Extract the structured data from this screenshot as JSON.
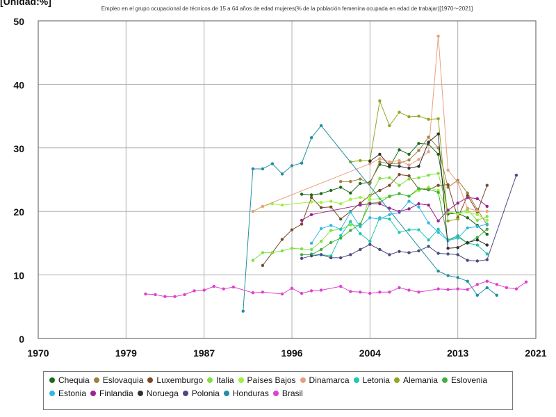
{
  "unit_label": "[Unidad:%]",
  "chart_data": {
    "type": "line",
    "title": "Empleo en el grupo ocupacional de técnicos de 15 a 64 años de edad mujeres(% de la población femenina ocupada en edad de trabajar)[1970〜2021]",
    "xlabel": "",
    "ylabel": "",
    "xlim": [
      1970,
      2021
    ],
    "ylim": [
      0,
      50
    ],
    "x_ticks": [
      "1970",
      "1979",
      "1987",
      "1996",
      "2004",
      "2013",
      "2021"
    ],
    "y_ticks": [
      "0",
      "10",
      "20",
      "30",
      "40",
      "50"
    ],
    "grid": true,
    "legend_position": "bottom",
    "series": [
      {
        "name": "Chequia",
        "color": "#1a6b1a",
        "points": [
          [
            1997,
            22.7
          ],
          [
            1998,
            22.6
          ],
          [
            1999,
            22.8
          ],
          [
            2000,
            23.3
          ],
          [
            2001,
            23.8
          ],
          [
            2002,
            22.9
          ],
          [
            2003,
            24.4
          ],
          [
            2004,
            24.6
          ],
          [
            2005,
            27.4
          ],
          [
            2006,
            27.0
          ],
          [
            2007,
            29.7
          ],
          [
            2008,
            29.0
          ],
          [
            2009,
            30.7
          ],
          [
            2010,
            30.6
          ],
          [
            2011,
            29.0
          ],
          [
            2012,
            19.6
          ],
          [
            2013,
            19.7
          ],
          [
            2014,
            19.0
          ],
          [
            2015,
            17.8
          ],
          [
            2016,
            16.4
          ]
        ]
      },
      {
        "name": "Eslovaquia",
        "color": "#a08040",
        "points": [
          [
            2001,
            24.7
          ],
          [
            2002,
            24.7
          ],
          [
            2003,
            25.1
          ],
          [
            2004,
            24.4
          ],
          [
            2005,
            27.8
          ],
          [
            2006,
            27.5
          ],
          [
            2007,
            27.6
          ],
          [
            2008,
            28.1
          ],
          [
            2009,
            29.6
          ],
          [
            2010,
            31.7
          ],
          [
            2011,
            30.0
          ],
          [
            2012,
            23.8
          ],
          [
            2013,
            24.9
          ],
          [
            2014,
            22.9
          ],
          [
            2015,
            20.3
          ],
          [
            2016,
            17.9
          ]
        ]
      },
      {
        "name": "Luxemburgo",
        "color": "#7a4a2a",
        "points": [
          [
            1993,
            11.5
          ],
          [
            1994,
            13.5
          ],
          [
            1995,
            15.6
          ],
          [
            1996,
            17.1
          ],
          [
            1997,
            18.0
          ],
          [
            1998,
            22.2
          ],
          [
            1999,
            20.6
          ],
          [
            2000,
            20.7
          ],
          [
            2001,
            18.8
          ],
          [
            2002,
            20.0
          ],
          [
            2003,
            21.3
          ],
          [
            2004,
            22.5
          ],
          [
            2005,
            23.3
          ],
          [
            2006,
            24.1
          ],
          [
            2007,
            25.8
          ],
          [
            2008,
            25.6
          ],
          [
            2009,
            23.5
          ],
          [
            2010,
            23.4
          ],
          [
            2011,
            24.1
          ],
          [
            2012,
            24.2
          ],
          [
            2013,
            19.0
          ],
          [
            2014,
            22.5
          ],
          [
            2015,
            19.9
          ],
          [
            2016,
            24.1
          ]
        ]
      },
      {
        "name": "Italia",
        "color": "#80e040",
        "points": [
          [
            1992,
            12.3
          ],
          [
            1993,
            13.5
          ],
          [
            1994,
            13.5
          ],
          [
            1995,
            13.8
          ],
          [
            1996,
            14.2
          ],
          [
            1997,
            14.1
          ],
          [
            1998,
            14.0
          ],
          [
            1999,
            15.3
          ],
          [
            2000,
            17.0
          ],
          [
            2001,
            17.2
          ],
          [
            2002,
            17.9
          ],
          [
            2003,
            17.7
          ],
          [
            2004,
            22.4
          ],
          [
            2005,
            25.2
          ],
          [
            2006,
            25.3
          ],
          [
            2007,
            24.1
          ],
          [
            2008,
            25.1
          ],
          [
            2009,
            25.3
          ],
          [
            2010,
            25.7
          ],
          [
            2011,
            26.0
          ],
          [
            2012,
            20.0
          ],
          [
            2013,
            19.6
          ],
          [
            2014,
            20.3
          ],
          [
            2015,
            18.6
          ],
          [
            2016,
            19.2
          ]
        ]
      },
      {
        "name": "Países Bajos",
        "color": "#9cf23c",
        "points": [
          [
            1992,
            20.0
          ],
          [
            1993,
            20.8
          ],
          [
            1994,
            21.2
          ],
          [
            1995,
            21.0
          ],
          [
            1998,
            21.5
          ],
          [
            1999,
            21.4
          ],
          [
            2000,
            21.6
          ],
          [
            2001,
            21.2
          ],
          [
            2002,
            21.9
          ],
          [
            2003,
            22.2
          ],
          [
            2004,
            21.9
          ],
          [
            2005,
            22.0
          ],
          [
            2006,
            22.3
          ],
          [
            2007,
            22.8
          ],
          [
            2008,
            22.4
          ],
          [
            2009,
            23.3
          ],
          [
            2010,
            23.8
          ],
          [
            2011,
            23.3
          ],
          [
            2012,
            19.9
          ],
          [
            2013,
            19.6
          ],
          [
            2014,
            19.9
          ],
          [
            2015,
            19.5
          ],
          [
            2016,
            18.6
          ]
        ]
      },
      {
        "name": "Dinamarca",
        "color": "#e8a080",
        "points": [
          [
            1992,
            20.0
          ],
          [
            1993,
            20.8
          ],
          [
            2004,
            27.5
          ],
          [
            2005,
            28.3
          ],
          [
            2006,
            27.8
          ],
          [
            2007,
            28.0
          ],
          [
            2008,
            27.3
          ],
          [
            2009,
            28.2
          ],
          [
            2010,
            29.4
          ],
          [
            2011,
            47.6
          ],
          [
            2012,
            26.5
          ],
          [
            2013,
            24.6
          ],
          [
            2014,
            20.5
          ],
          [
            2015,
            20.1
          ],
          [
            2016,
            20.0
          ]
        ]
      },
      {
        "name": "Letonia",
        "color": "#20c8b0",
        "points": [
          [
            1998,
            13.3
          ],
          [
            1999,
            13.2
          ],
          [
            2000,
            13.0
          ],
          [
            2001,
            16.2
          ],
          [
            2002,
            18.4
          ],
          [
            2003,
            16.5
          ],
          [
            2004,
            15.3
          ],
          [
            2005,
            19.0
          ],
          [
            2006,
            18.8
          ],
          [
            2007,
            16.7
          ],
          [
            2008,
            17.1
          ],
          [
            2009,
            17.1
          ],
          [
            2010,
            15.5
          ],
          [
            2011,
            17.2
          ],
          [
            2012,
            15.5
          ],
          [
            2013,
            16.2
          ],
          [
            2014,
            15.0
          ],
          [
            2015,
            14.7
          ],
          [
            2016,
            13.3
          ]
        ]
      },
      {
        "name": "Alemania",
        "color": "#90a820",
        "points": [
          [
            2002,
            27.8
          ],
          [
            2003,
            28.0
          ],
          [
            2004,
            28.0
          ],
          [
            2005,
            37.4
          ],
          [
            2006,
            33.5
          ],
          [
            2007,
            35.6
          ],
          [
            2008,
            34.9
          ],
          [
            2009,
            35.0
          ],
          [
            2010,
            34.5
          ],
          [
            2011,
            34.6
          ],
          [
            2012,
            18.5
          ],
          [
            2013,
            18.8
          ]
        ]
      },
      {
        "name": "Eslovenia",
        "color": "#40b040",
        "points": [
          [
            1997,
            13.2
          ],
          [
            1998,
            13.2
          ],
          [
            1999,
            14.0
          ],
          [
            2000,
            15.1
          ],
          [
            2001,
            15.8
          ],
          [
            2002,
            17.0
          ],
          [
            2003,
            18.0
          ],
          [
            2004,
            21.3
          ],
          [
            2005,
            21.4
          ],
          [
            2006,
            22.4
          ],
          [
            2007,
            22.8
          ],
          [
            2008,
            22.4
          ],
          [
            2009,
            23.6
          ],
          [
            2010,
            23.5
          ],
          [
            2011,
            23.0
          ],
          [
            2012,
            15.5
          ],
          [
            2013,
            16.0
          ],
          [
            2014,
            15.0
          ],
          [
            2015,
            15.9
          ],
          [
            2016,
            17.2
          ]
        ]
      },
      {
        "name": "Estonia",
        "color": "#30b8e8",
        "points": [
          [
            1998,
            15.0
          ],
          [
            1999,
            17.3
          ],
          [
            2000,
            17.8
          ],
          [
            2001,
            17.2
          ],
          [
            2002,
            19.9
          ],
          [
            2003,
            17.6
          ],
          [
            2004,
            19.0
          ],
          [
            2005,
            18.8
          ],
          [
            2006,
            19.5
          ],
          [
            2007,
            19.8
          ],
          [
            2008,
            21.6
          ],
          [
            2009,
            20.7
          ],
          [
            2010,
            18.2
          ],
          [
            2011,
            16.7
          ],
          [
            2012,
            15.4
          ],
          [
            2013,
            15.8
          ],
          [
            2014,
            17.4
          ],
          [
            2015,
            17.6
          ],
          [
            2016,
            18.0
          ]
        ]
      },
      {
        "name": "Finlandia",
        "color": "#a02090",
        "points": [
          [
            1997,
            18.6
          ],
          [
            1998,
            19.5
          ],
          [
            2003,
            21.0
          ],
          [
            2004,
            21.2
          ],
          [
            2005,
            21.2
          ],
          [
            2006,
            20.5
          ],
          [
            2007,
            20.0
          ],
          [
            2008,
            20.4
          ],
          [
            2009,
            21.2
          ],
          [
            2010,
            21.0
          ],
          [
            2011,
            18.5
          ],
          [
            2012,
            20.2
          ],
          [
            2013,
            21.3
          ],
          [
            2014,
            22.2
          ],
          [
            2015,
            22.0
          ],
          [
            2016,
            20.8
          ]
        ]
      },
      {
        "name": "Noruega",
        "color": "#303030",
        "points": [
          [
            2004,
            27.9
          ],
          [
            2005,
            29.0
          ],
          [
            2006,
            27.2
          ],
          [
            2007,
            27.1
          ],
          [
            2008,
            26.8
          ],
          [
            2009,
            27.1
          ],
          [
            2010,
            30.9
          ],
          [
            2011,
            32.2
          ],
          [
            2012,
            14.2
          ],
          [
            2013,
            14.3
          ],
          [
            2014,
            15.1
          ],
          [
            2015,
            15.5
          ],
          [
            2016,
            14.7
          ]
        ]
      },
      {
        "name": "Polonia",
        "color": "#4a4a80",
        "points": [
          [
            1997,
            12.6
          ],
          [
            1998,
            13.0
          ],
          [
            1999,
            13.2
          ],
          [
            2000,
            12.7
          ],
          [
            2001,
            12.7
          ],
          [
            2002,
            13.2
          ],
          [
            2003,
            14.0
          ],
          [
            2004,
            14.8
          ],
          [
            2005,
            14.0
          ],
          [
            2006,
            13.2
          ],
          [
            2007,
            13.7
          ],
          [
            2008,
            13.5
          ],
          [
            2009,
            13.8
          ],
          [
            2010,
            14.5
          ],
          [
            2011,
            13.4
          ],
          [
            2012,
            13.3
          ],
          [
            2013,
            13.2
          ],
          [
            2014,
            12.3
          ],
          [
            2015,
            12.2
          ],
          [
            2016,
            12.4
          ],
          [
            2019,
            25.7
          ]
        ]
      },
      {
        "name": "Honduras",
        "color": "#2090a0",
        "points": [
          [
            1991,
            4.3
          ],
          [
            1992,
            26.7
          ],
          [
            1993,
            26.7
          ],
          [
            1994,
            27.5
          ],
          [
            1995,
            25.9
          ],
          [
            1996,
            27.2
          ],
          [
            1997,
            27.6
          ],
          [
            1998,
            31.6
          ],
          [
            1999,
            33.5
          ],
          [
            2011,
            10.6
          ],
          [
            2012,
            9.9
          ],
          [
            2013,
            9.6
          ],
          [
            2014,
            9.0
          ],
          [
            2015,
            6.8
          ],
          [
            2016,
            8.0
          ],
          [
            2017,
            6.8
          ]
        ]
      },
      {
        "name": "Brasil",
        "color": "#e040d0",
        "points": [
          [
            1981,
            7.0
          ],
          [
            1982,
            6.9
          ],
          [
            1983,
            6.6
          ],
          [
            1984,
            6.6
          ],
          [
            1985,
            6.9
          ],
          [
            1986,
            7.5
          ],
          [
            1987,
            7.6
          ],
          [
            1988,
            8.2
          ],
          [
            1989,
            7.8
          ],
          [
            1990,
            8.1
          ],
          [
            1992,
            7.2
          ],
          [
            1993,
            7.3
          ],
          [
            1995,
            7.0
          ],
          [
            1996,
            7.9
          ],
          [
            1997,
            7.1
          ],
          [
            1998,
            7.5
          ],
          [
            1999,
            7.6
          ],
          [
            2001,
            8.2
          ],
          [
            2002,
            7.4
          ],
          [
            2003,
            7.3
          ],
          [
            2004,
            7.1
          ],
          [
            2005,
            7.3
          ],
          [
            2006,
            7.3
          ],
          [
            2007,
            8.0
          ],
          [
            2008,
            7.6
          ],
          [
            2009,
            7.3
          ],
          [
            2011,
            7.8
          ],
          [
            2012,
            7.7
          ],
          [
            2013,
            7.8
          ],
          [
            2014,
            7.7
          ],
          [
            2015,
            8.5
          ],
          [
            2016,
            9.0
          ],
          [
            2017,
            8.5
          ],
          [
            2018,
            8.0
          ],
          [
            2019,
            7.8
          ],
          [
            2020,
            8.9
          ]
        ]
      }
    ]
  }
}
